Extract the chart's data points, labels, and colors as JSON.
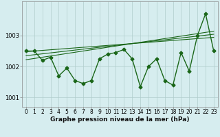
{
  "xlabel": "Graphe pression niveau de la mer (hPa)",
  "x": [
    0,
    1,
    2,
    3,
    4,
    5,
    6,
    7,
    8,
    9,
    10,
    11,
    12,
    13,
    14,
    15,
    16,
    17,
    18,
    19,
    20,
    21,
    22,
    23
  ],
  "pressure": [
    1002.5,
    1002.5,
    1002.2,
    1002.3,
    1001.7,
    1001.95,
    1001.55,
    1001.45,
    1001.55,
    1002.25,
    1002.4,
    1002.45,
    1002.55,
    1002.25,
    1001.35,
    1002.0,
    1002.25,
    1001.55,
    1001.4,
    1002.45,
    1001.85,
    1003.0,
    1003.7,
    1002.5
  ],
  "trend1": [
    1002.48,
    1002.5,
    1002.52,
    1002.54,
    1002.56,
    1002.58,
    1002.6,
    1002.62,
    1002.64,
    1002.66,
    1002.68,
    1002.7,
    1002.72,
    1002.74,
    1002.76,
    1002.78,
    1002.8,
    1002.82,
    1002.84,
    1002.86,
    1002.88,
    1002.9,
    1002.92,
    1002.94
  ],
  "trend2": [
    1002.35,
    1002.38,
    1002.41,
    1002.44,
    1002.47,
    1002.5,
    1002.53,
    1002.56,
    1002.59,
    1002.62,
    1002.65,
    1002.68,
    1002.71,
    1002.74,
    1002.77,
    1002.8,
    1002.83,
    1002.86,
    1002.89,
    1002.92,
    1002.95,
    1002.98,
    1003.01,
    1003.04
  ],
  "trend3": [
    1002.22,
    1002.26,
    1002.3,
    1002.34,
    1002.38,
    1002.42,
    1002.46,
    1002.5,
    1002.54,
    1002.58,
    1002.62,
    1002.66,
    1002.7,
    1002.74,
    1002.78,
    1002.82,
    1002.86,
    1002.9,
    1002.94,
    1002.98,
    1003.02,
    1003.06,
    1003.1,
    1003.14
  ],
  "ylim": [
    1000.7,
    1004.1
  ],
  "yticks": [
    1001,
    1002,
    1003
  ],
  "line_color": "#1a6618",
  "bg_color": "#d6edef",
  "grid_color": "#b0cccc",
  "marker": "D",
  "markersize": 2.5,
  "linewidth": 1.0,
  "xlabel_fontsize": 6.5,
  "tick_fontsize": 5.5
}
